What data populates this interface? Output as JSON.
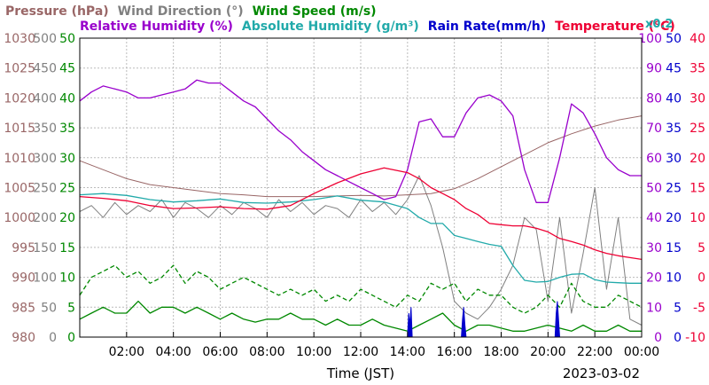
{
  "chart_data": {
    "type": "line",
    "date": "2023-03-02",
    "xlabel": "Time (JST)",
    "x_ticks": [
      "02:00",
      "04:00",
      "06:00",
      "08:00",
      "10:00",
      "12:00",
      "14:00",
      "16:00",
      "18:00",
      "20:00",
      "22:00",
      "00:00"
    ],
    "header": {
      "row1": [
        {
          "text": "Pressure (hPa)",
          "color": "#996666"
        },
        {
          "text": "Wind Direction (°)",
          "color": "#808080"
        },
        {
          "text": "Wind Speed (m/s)",
          "color": "#008800"
        }
      ],
      "row2": [
        {
          "text": "Relative Humidity (%)",
          "color": "#9900cc"
        },
        {
          "text": "Absolute Humidity (g/m³)",
          "color": "#22aaaa"
        },
        {
          "text": "Rain Rate(mm/h)",
          "color": "#0000cc"
        },
        {
          "text": "Temperature (°C)",
          "color": "#ee0033"
        }
      ],
      "note": "x0.2"
    },
    "axes": {
      "pressure": {
        "color": "#996666",
        "range": [
          980,
          1030
        ],
        "ticks": [
          "1030",
          "1025",
          "1020",
          "1015",
          "1010",
          "1005",
          "1000",
          "995",
          "990",
          "985",
          "980"
        ]
      },
      "wind_direction": {
        "color": "#808080",
        "range": [
          0,
          500
        ],
        "ticks": [
          "500",
          "450",
          "400",
          "350",
          "300",
          "250",
          "200",
          "150",
          "100",
          "50",
          "0"
        ]
      },
      "wind_speed": {
        "color": "#008800",
        "range": [
          0,
          50
        ],
        "ticks": [
          "50",
          "45",
          "40",
          "35",
          "30",
          "25",
          "20",
          "15",
          "10",
          "5",
          "0"
        ]
      },
      "humidity": {
        "color": "#9900cc",
        "range": [
          0,
          100
        ],
        "ticks": [
          "100",
          "90",
          "80",
          "70",
          "60",
          "50",
          "40",
          "30",
          "20",
          "10",
          "0"
        ]
      },
      "rain_rate": {
        "color": "#0000cc",
        "range": [
          0,
          50
        ],
        "ticks": [
          "50",
          "45",
          "40",
          "35",
          "30",
          "25",
          "20",
          "15",
          "10",
          "5",
          "0"
        ]
      },
      "temperature": {
        "color": "#ee0033",
        "range": [
          -10,
          40
        ],
        "ticks": [
          "40",
          "35",
          "30",
          "25",
          "20",
          "15",
          "10",
          "5",
          "0",
          "-5",
          "-10"
        ]
      }
    },
    "grid": true,
    "series": [
      {
        "name": "Pressure (hPa)",
        "axis": "pressure",
        "color": "#996666",
        "x": [
          0,
          1,
          2,
          3,
          4,
          5,
          6,
          7,
          8,
          9,
          10,
          11,
          12,
          13,
          14,
          15,
          16,
          17,
          18,
          19,
          20,
          21,
          22,
          23,
          24
        ],
        "values": [
          1009.5,
          1008,
          1006.5,
          1005.5,
          1005,
          1004.5,
          1004,
          1003.8,
          1003.5,
          1003.5,
          1003.5,
          1003.6,
          1003.7,
          1003.6,
          1003.8,
          1004,
          1004.8,
          1006.5,
          1008.5,
          1010.5,
          1012.5,
          1014,
          1015.3,
          1016.3,
          1017
        ]
      },
      {
        "name": "Relative Humidity (%)",
        "axis": "humidity",
        "color": "#9900cc",
        "x": [
          0,
          0.5,
          1,
          1.5,
          2,
          2.5,
          3,
          3.5,
          4,
          4.5,
          5,
          5.5,
          6,
          6.5,
          7,
          7.5,
          8,
          8.5,
          9,
          9.5,
          10,
          10.5,
          11,
          11.5,
          12,
          12.5,
          13,
          13.5,
          14,
          14.5,
          15,
          15.5,
          16,
          16.5,
          17,
          17.5,
          18,
          18.5,
          19,
          19.5,
          20,
          20.5,
          21,
          21.5,
          22,
          22.5,
          23,
          23.5,
          24
        ],
        "values": [
          79,
          82,
          84,
          83,
          82,
          80,
          80,
          81,
          82,
          83,
          86,
          85,
          85,
          82,
          79,
          77,
          73,
          69,
          66,
          62,
          59,
          56,
          54,
          52,
          50,
          48,
          46,
          47,
          56,
          72,
          73,
          67,
          67,
          75,
          80,
          81,
          79,
          74,
          56,
          45,
          45,
          60,
          78,
          75,
          68,
          60,
          56,
          54,
          54
        ]
      },
      {
        "name": "Absolute Humidity (g/m³)",
        "axis": "temperature",
        "color": "#22aaaa",
        "x": [
          0,
          1,
          2,
          3,
          4,
          5,
          6,
          7,
          8,
          9,
          10,
          11,
          12,
          13,
          14,
          14.5,
          15,
          15.5,
          16,
          16.5,
          17,
          17.5,
          18,
          18.5,
          19,
          19.5,
          20,
          20.5,
          21,
          21.5,
          22,
          22.5,
          23,
          23.5,
          24
        ],
        "values": [
          13.8,
          14,
          13.7,
          13,
          12.6,
          12.8,
          13.1,
          12.5,
          12.4,
          12.6,
          13,
          13.6,
          12.9,
          12.6,
          11.5,
          10,
          9,
          9,
          7,
          6.5,
          6,
          5.5,
          5.2,
          2,
          -0.5,
          -0.8,
          -0.7,
          0,
          0.5,
          0.6,
          -0.4,
          -0.8,
          -0.9,
          -1,
          -1
        ]
      },
      {
        "name": "Temperature (°C)",
        "axis": "temperature",
        "color": "#ee0033",
        "x": [
          0,
          1,
          2,
          3,
          4,
          5,
          6,
          7,
          8,
          9,
          10,
          11,
          12,
          13,
          14,
          14.5,
          15,
          15.5,
          16,
          16.5,
          17,
          17.5,
          18,
          18.5,
          19,
          19.5,
          20,
          20.5,
          21,
          21.5,
          22,
          22.5,
          23,
          23.5,
          24
        ],
        "values": [
          13.5,
          13.2,
          12.8,
          12,
          11.5,
          11.6,
          11.8,
          11.5,
          11.4,
          12,
          14,
          15.8,
          17.3,
          18.3,
          17.5,
          16.5,
          15,
          14,
          13,
          11.5,
          10.5,
          9,
          8.8,
          8.6,
          8.6,
          8.2,
          7.6,
          6.5,
          6,
          5.4,
          4.6,
          4,
          3.6,
          3.3,
          3
        ]
      },
      {
        "name": "Wind Speed (m/s)",
        "axis": "wind_speed",
        "color": "#008800",
        "style": "dashed",
        "x": [
          0,
          0.5,
          1,
          1.5,
          2,
          2.5,
          3,
          3.5,
          4,
          4.5,
          5,
          5.5,
          6,
          6.5,
          7,
          7.5,
          8,
          8.5,
          9,
          9.5,
          10,
          10.5,
          11,
          11.5,
          12,
          12.5,
          13,
          13.5,
          14,
          14.5,
          15,
          15.5,
          16,
          16.5,
          17,
          17.5,
          18,
          18.5,
          19,
          19.5,
          20,
          20.5,
          21,
          21.5,
          22,
          22.5,
          23,
          23.5,
          24
        ],
        "values": [
          7,
          10,
          11,
          12,
          10,
          11,
          9,
          10,
          12,
          9,
          11,
          10,
          8,
          9,
          10,
          9,
          8,
          7,
          8,
          7,
          8,
          6,
          7,
          6,
          8,
          7,
          6,
          5,
          7,
          6,
          9,
          8,
          9,
          6,
          8,
          7,
          7,
          5,
          4,
          5,
          7,
          5,
          9,
          6,
          5,
          5,
          7,
          6,
          5
        ]
      },
      {
        "name": "Wind Speed (m/s)",
        "axis": "wind_speed",
        "color": "#008800",
        "style": "solid",
        "x": [
          0,
          0.5,
          1,
          1.5,
          2,
          2.5,
          3,
          3.5,
          4,
          4.5,
          5,
          5.5,
          6,
          6.5,
          7,
          7.5,
          8,
          8.5,
          9,
          9.5,
          10,
          10.5,
          11,
          11.5,
          12,
          12.5,
          13,
          13.5,
          14,
          14.5,
          15,
          15.5,
          16,
          16.5,
          17,
          17.5,
          18,
          18.5,
          19,
          19.5,
          20,
          20.5,
          21,
          21.5,
          22,
          22.5,
          23,
          23.5,
          24
        ],
        "values": [
          3,
          4,
          5,
          4,
          4,
          6,
          4,
          5,
          5,
          4,
          5,
          4,
          3,
          4,
          3,
          2.5,
          3,
          3,
          4,
          3,
          3,
          2,
          3,
          2,
          2,
          3,
          2,
          1.5,
          1,
          2,
          3,
          4,
          2,
          1,
          2,
          2,
          1.5,
          1,
          1,
          1.5,
          2,
          1.5,
          1,
          2,
          1,
          1,
          2,
          1,
          1
        ]
      },
      {
        "name": "Wind Direction (°)",
        "axis": "wind_direction",
        "color": "#808080",
        "x": [
          0,
          0.5,
          1,
          1.5,
          2,
          2.5,
          3,
          3.5,
          4,
          4.5,
          5,
          5.5,
          6,
          6.5,
          7,
          7.5,
          8,
          8.5,
          9,
          9.5,
          10,
          10.5,
          11,
          11.5,
          12,
          12.5,
          13,
          13.5,
          14,
          14.5,
          15,
          15.5,
          16,
          16.5,
          17,
          17.5,
          18,
          18.5,
          19,
          19.5,
          20,
          20.5,
          21,
          21.5,
          22,
          22.5,
          23,
          23.5,
          24
        ],
        "values": [
          210,
          220,
          200,
          225,
          205,
          220,
          210,
          230,
          200,
          225,
          215,
          200,
          220,
          205,
          225,
          215,
          200,
          230,
          210,
          225,
          205,
          220,
          215,
          200,
          230,
          210,
          225,
          205,
          230,
          270,
          220,
          150,
          60,
          40,
          30,
          50,
          80,
          120,
          200,
          180,
          60,
          200,
          40,
          140,
          250,
          80,
          200,
          30,
          20
        ]
      },
      {
        "name": "Rain Rate(mm/h)",
        "axis": "rain_rate",
        "color": "#0000cc",
        "x": [
          0,
          14.0,
          14.05,
          14.1,
          14.15,
          14.2,
          16.3,
          16.35,
          16.4,
          16.45,
          16.5,
          20.3,
          20.35,
          20.4,
          20.45,
          20.5,
          24
        ],
        "values": [
          0,
          0,
          4,
          2,
          5,
          0,
          0,
          3,
          5,
          2,
          0,
          0,
          4,
          6,
          3,
          0,
          0
        ]
      }
    ]
  }
}
